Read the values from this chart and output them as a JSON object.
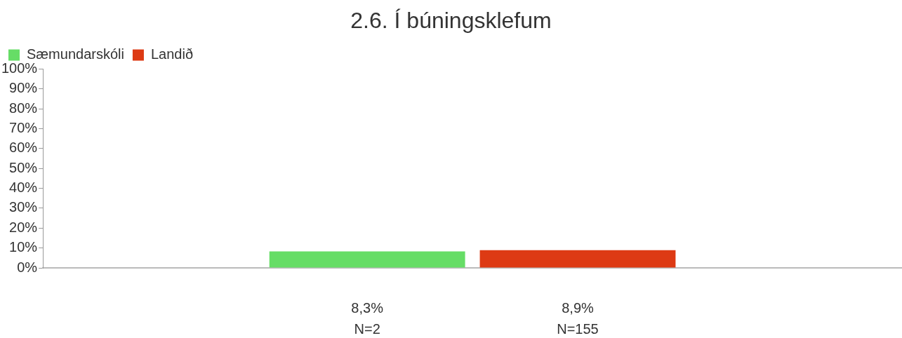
{
  "chart_data": {
    "type": "bar",
    "title": "2.6. Í búningsklefum",
    "categories": [
      null
    ],
    "series": [
      {
        "name": "Sæmundarskóli",
        "color": "#66dd66",
        "values": [
          8.3
        ],
        "value_labels": [
          "8,3%"
        ]
      },
      {
        "name": "Landið",
        "color": "#dd3a14",
        "values": [
          8.9
        ],
        "value_labels": [
          "8,9%"
        ]
      }
    ],
    "annotations": [
      "N=2",
      "N=155"
    ],
    "ylim": [
      0,
      100
    ],
    "yticks": [
      {
        "value": 0,
        "label": "0%"
      },
      {
        "value": 10,
        "label": "10%"
      },
      {
        "value": 20,
        "label": "20%"
      },
      {
        "value": 30,
        "label": "30%"
      },
      {
        "value": 40,
        "label": "40%"
      },
      {
        "value": 50,
        "label": "50%"
      },
      {
        "value": 60,
        "label": "60%"
      },
      {
        "value": 70,
        "label": "70%"
      },
      {
        "value": 80,
        "label": "80%"
      },
      {
        "value": 90,
        "label": "90%"
      },
      {
        "value": 100,
        "label": "100%"
      }
    ],
    "grid": false,
    "legend": "top"
  }
}
